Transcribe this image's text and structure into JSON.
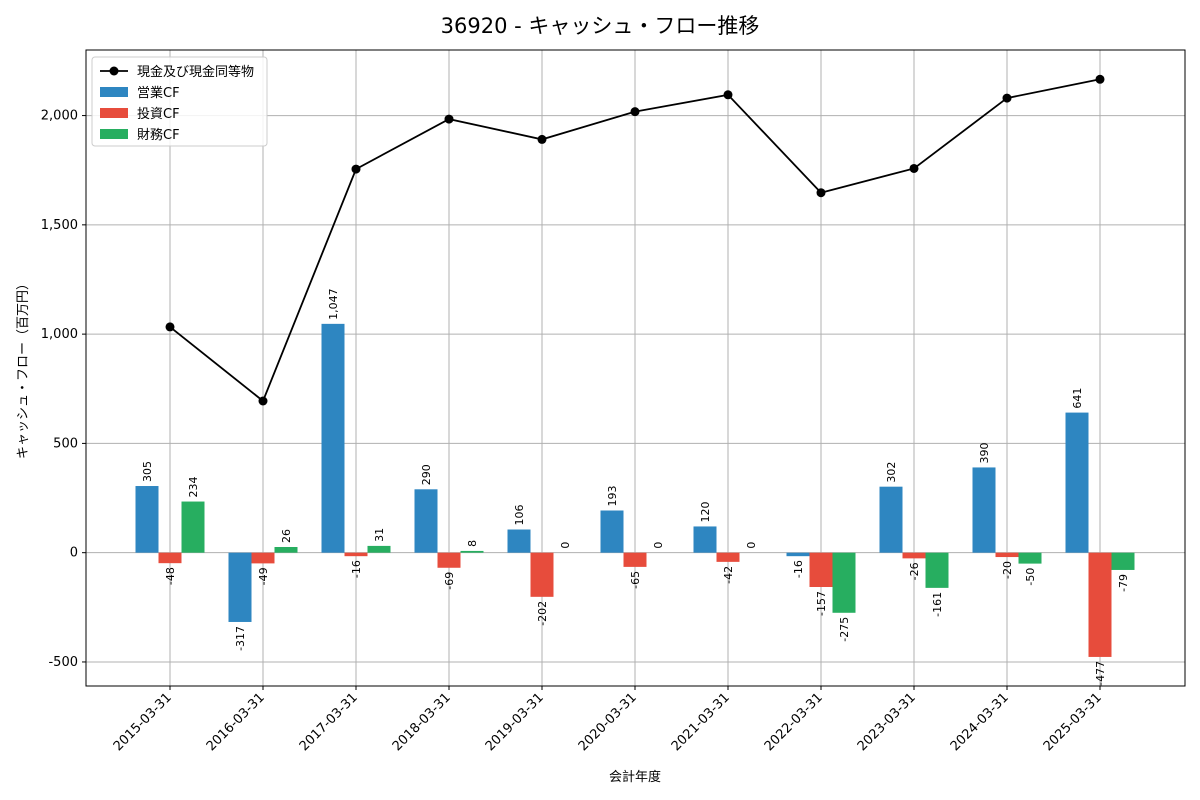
{
  "chart_data": {
    "type": "bar",
    "title": "36920 - キャッシュ・フロー推移",
    "xlabel": "会計年度",
    "ylabel": "キャッシュ・フロー（百万円）",
    "ylim": [
      -610,
      2300
    ],
    "yticks": [
      -500,
      0,
      500,
      1000,
      1500,
      2000
    ],
    "ytick_labels": [
      "-500",
      "0",
      "500",
      "1,000",
      "1,500",
      "2,000"
    ],
    "grid": true,
    "legend_position": "top-left",
    "categories": [
      "2015-03-31",
      "2016-03-31",
      "2017-03-31",
      "2018-03-31",
      "2019-03-31",
      "2020-03-31",
      "2021-03-31",
      "2022-03-31",
      "2023-03-31",
      "2024-03-31",
      "2025-03-31"
    ],
    "series": [
      {
        "name": "営業CF",
        "color": "#2e86c1",
        "values": [
          305,
          -317,
          1047,
          290,
          106,
          193,
          120,
          -16,
          302,
          390,
          641
        ],
        "labels": [
          "305",
          "-317",
          "1,047",
          "290",
          "106",
          "193",
          "120",
          "-16",
          "302",
          "390",
          "641"
        ]
      },
      {
        "name": "投資CF",
        "color": "#e74c3c",
        "values": [
          -48,
          -49,
          -16,
          -69,
          -202,
          -65,
          -42,
          -157,
          -26,
          -20,
          -477
        ],
        "labels": [
          "-48",
          "-49",
          "-16",
          "-69",
          "-202",
          "-65",
          "-42",
          "-157",
          "-26",
          "-20",
          "-477"
        ]
      },
      {
        "name": "財務CF",
        "color": "#27ae60",
        "values": [
          234,
          26,
          31,
          8,
          0,
          0,
          0,
          -275,
          -161,
          -50,
          -79
        ],
        "labels": [
          "234",
          "26",
          "31",
          "8",
          "0",
          "0",
          "0",
          "-275",
          "-161",
          "-50",
          "-79"
        ]
      }
    ],
    "line": {
      "name": "現金及び現金同等物",
      "color": "#000000",
      "values": [
        1033,
        694,
        1755,
        1984,
        1891,
        2018,
        2095,
        1647,
        1758,
        2080,
        2166
      ]
    }
  }
}
